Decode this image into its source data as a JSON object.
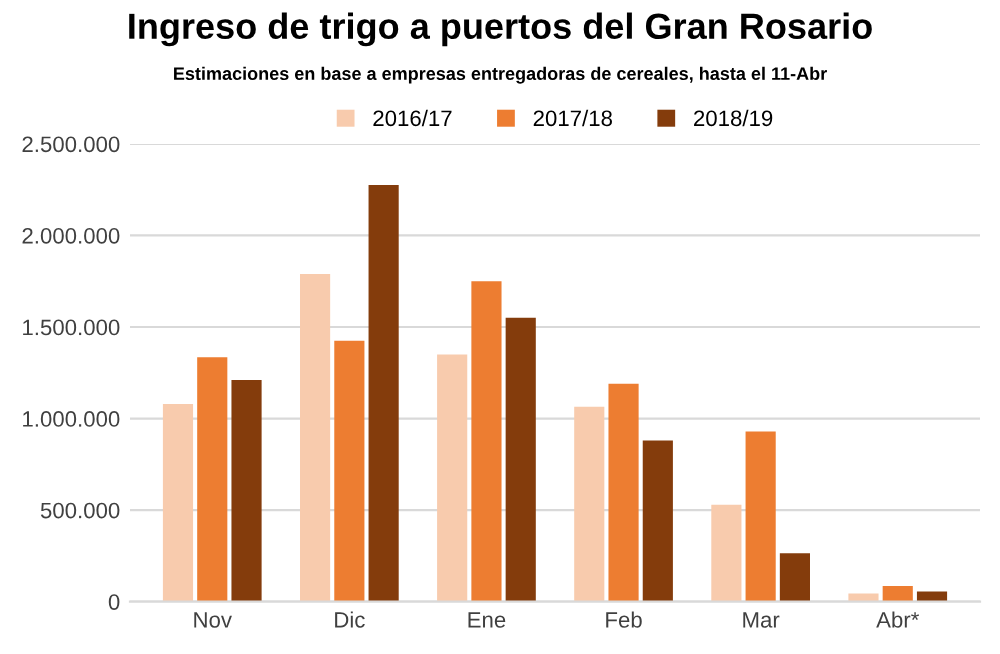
{
  "chart_data": {
    "type": "bar",
    "title": "Ingreso de trigo a puertos del Gran Rosario",
    "subtitle": "Estimaciones en base a empresas entregadoras de cereales, hasta el 11-Abr",
    "categories": [
      "Nov",
      "Dic",
      "Ene",
      "Feb",
      "Mar",
      "Abr*"
    ],
    "series": [
      {
        "name": "2016/17",
        "color": "#f8cbad",
        "values": [
          1080000,
          1790000,
          1350000,
          1065000,
          530000,
          45000
        ]
      },
      {
        "name": "2017/18",
        "color": "#ed7d31",
        "values": [
          1335000,
          1425000,
          1750000,
          1190000,
          930000,
          85000
        ]
      },
      {
        "name": "2018/19",
        "color": "#843c0c",
        "values": [
          1210000,
          2275000,
          1550000,
          880000,
          265000,
          55000
        ]
      }
    ],
    "ylim": [
      0,
      2500000
    ],
    "yticks": [
      {
        "value": 0,
        "label": "0"
      },
      {
        "value": 500000,
        "label": "500.000"
      },
      {
        "value": 1000000,
        "label": "1.000.000"
      },
      {
        "value": 1500000,
        "label": "1.500.000"
      },
      {
        "value": 2000000,
        "label": "2.000.000"
      },
      {
        "value": 2500000,
        "label": "2.500.000"
      }
    ],
    "grid": "y",
    "legend": "top"
  }
}
